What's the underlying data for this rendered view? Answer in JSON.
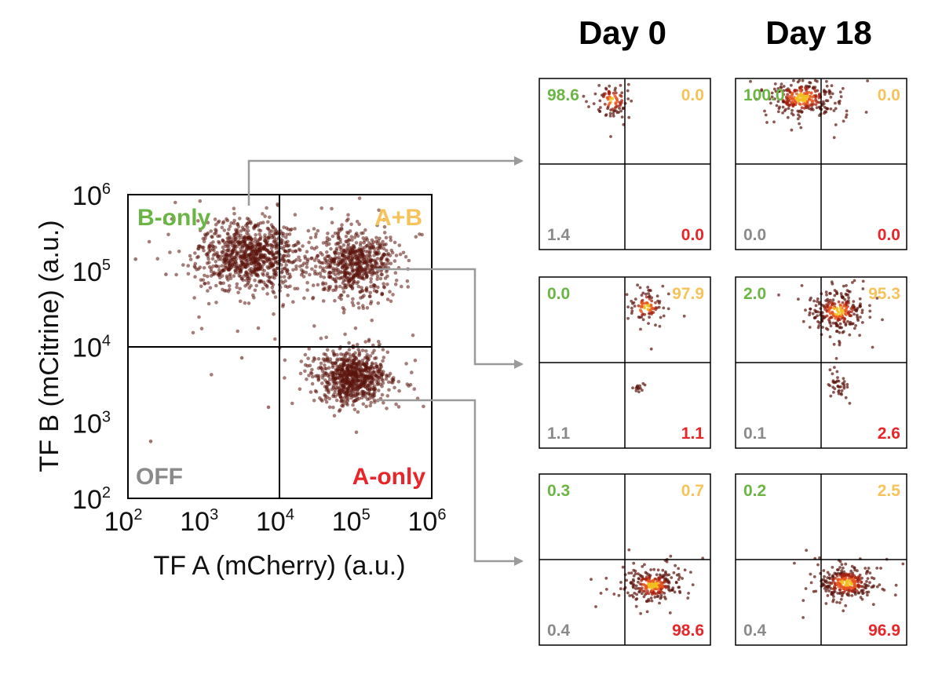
{
  "colors": {
    "b_only": "#6bb545",
    "a_plus_b": "#f6c35a",
    "a_only": "#e8262a",
    "off": "#8a8a8a",
    "dot": "#5b140d",
    "dot_hot": "#f2bf20",
    "arrow": "#9a9a9a"
  },
  "chart_data": [
    {
      "type": "scatter",
      "id": "main",
      "xlabel": "TF A (mCherry) (a.u.)",
      "ylabel": "TF B (mCitrine) (a.u.)",
      "scale": "log10",
      "xlim": [
        100,
        1000000
      ],
      "ylim": [
        100,
        1000000
      ],
      "gate": {
        "x": 10000,
        "y": 10000
      },
      "x_ticks": [
        {
          "base": "10",
          "exp": "2"
        },
        {
          "base": "10",
          "exp": "3"
        },
        {
          "base": "10",
          "exp": "4"
        },
        {
          "base": "10",
          "exp": "5"
        },
        {
          "base": "10",
          "exp": "6"
        }
      ],
      "y_ticks": [
        {
          "base": "10",
          "exp": "2"
        },
        {
          "base": "10",
          "exp": "3"
        },
        {
          "base": "10",
          "exp": "4"
        },
        {
          "base": "10",
          "exp": "5"
        },
        {
          "base": "10",
          "exp": "6"
        }
      ],
      "quadrant_labels": {
        "top_left": "B-only",
        "top_right": "A+B",
        "bottom_left": "OFF",
        "bottom_right": "A-only"
      },
      "populations": [
        {
          "name": "B-only",
          "center_log": [
            3.6,
            5.2
          ],
          "spread_log": [
            0.32,
            0.22
          ],
          "count": 900
        },
        {
          "name": "A+B",
          "center_log": [
            5.0,
            5.08
          ],
          "spread_log": [
            0.25,
            0.22
          ],
          "count": 650
        },
        {
          "name": "A-only",
          "center_log": [
            4.95,
            3.6
          ],
          "spread_log": [
            0.22,
            0.17
          ],
          "count": 750
        }
      ],
      "outliers_log": [
        [
          2.3,
          2.75
        ],
        [
          3.5,
          3.85
        ],
        [
          3.85,
          3.2
        ],
        [
          2.1,
          5.15
        ],
        [
          2.5,
          4.95
        ]
      ]
    },
    {
      "type": "scatter-grid",
      "id": "timecourse",
      "columns": [
        "Day 0",
        "Day 18"
      ],
      "scale": "log10",
      "panels": [
        {
          "row": 0,
          "col": 0,
          "percentages": {
            "top_left": "98.6",
            "top_right": "0.0",
            "bottom_left": "1.4",
            "bottom_right": "0.0"
          },
          "centers_log": [
            [
              3.7,
              5.5
            ]
          ],
          "spread_log": [
            [
              0.2,
              0.18
            ]
          ],
          "count": 90
        },
        {
          "row": 0,
          "col": 1,
          "percentages": {
            "top_left": "100.0",
            "top_right": "0.0",
            "bottom_left": "0.0",
            "bottom_right": "0.0"
          },
          "centers_log": [
            [
              3.55,
              5.55
            ]
          ],
          "spread_log": [
            [
              0.38,
              0.22
            ]
          ],
          "count": 300
        },
        {
          "row": 1,
          "col": 0,
          "percentages": {
            "top_left": "0.0",
            "top_right": "97.9",
            "bottom_left": "1.1",
            "bottom_right": "1.1"
          },
          "centers_log": [
            [
              4.5,
              5.3
            ],
            [
              4.3,
              3.4
            ]
          ],
          "spread_log": [
            [
              0.2,
              0.2
            ],
            [
              0.1,
              0.06
            ]
          ],
          "count": 90
        },
        {
          "row": 1,
          "col": 1,
          "percentages": {
            "top_left": "2.0",
            "top_right": "95.3",
            "bottom_left": "0.1",
            "bottom_right": "2.6"
          },
          "centers_log": [
            [
              4.4,
              5.2
            ],
            [
              4.4,
              3.55
            ]
          ],
          "spread_log": [
            [
              0.3,
              0.22
            ],
            [
              0.12,
              0.15
            ]
          ],
          "count": 260
        },
        {
          "row": 2,
          "col": 0,
          "percentages": {
            "top_left": "0.3",
            "top_right": "0.7",
            "bottom_left": "0.4",
            "bottom_right": "98.6"
          },
          "centers_log": [
            [
              4.65,
              3.4
            ]
          ],
          "spread_log": [
            [
              0.3,
              0.18
            ]
          ],
          "count": 260
        },
        {
          "row": 2,
          "col": 1,
          "percentages": {
            "top_left": "0.2",
            "top_right": "2.5",
            "bottom_left": "0.4",
            "bottom_right": "96.9"
          },
          "centers_log": [
            [
              4.6,
              3.45
            ]
          ],
          "spread_log": [
            [
              0.32,
              0.2
            ]
          ],
          "count": 300
        }
      ]
    }
  ]
}
